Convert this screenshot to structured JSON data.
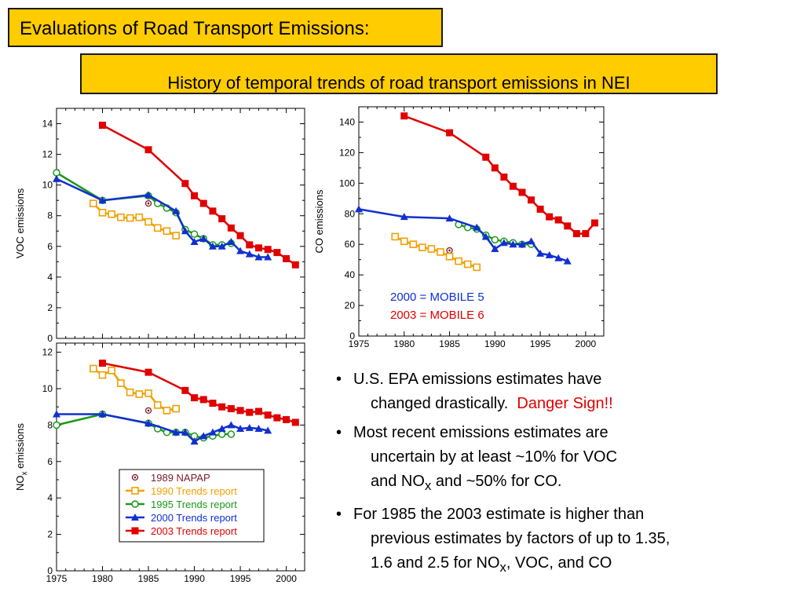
{
  "header": {
    "title": "Evaluations of Road Transport Emissions:",
    "subtitle": "History of temporal trends of road transport emissions in NEI"
  },
  "legend": {
    "entries": [
      {
        "key": "napap",
        "label": "1989 NAPAP",
        "color": "#7b1a2e",
        "marker": "dotcircle"
      },
      {
        "key": "trends1990",
        "label": "1990 Trends report",
        "color": "#f0a000",
        "marker": "square-open"
      },
      {
        "key": "trends1995",
        "label": "1995 Trends report",
        "color": "#1a9a1a",
        "marker": "circle-open"
      },
      {
        "key": "trends2000",
        "label": "2000 Trends report",
        "color": "#1030d0",
        "marker": "triangle"
      },
      {
        "key": "trends2003",
        "label": "2003 Trends report",
        "color": "#e00000",
        "marker": "square-filled"
      }
    ]
  },
  "annotations": {
    "co_line1": "2000 = MOBILE 5",
    "co_line1_color": "#1030d0",
    "co_line2": "2003 = MOBILE 6",
    "co_line2_color": "#e00000"
  },
  "bullets": {
    "b1_line1": "U.S. EPA emissions estimates have",
    "b1_line2_a": "changed drastically.",
    "b1_line2_b": "Danger Sign!!",
    "b2_line1": "Most recent emissions estimates are",
    "b2_line2": "uncertain by at least ~10% for VOC",
    "b2_line3_a": "and NO",
    "b2_line3_sub": "x",
    "b2_line3_b": " and ~50% for CO.",
    "b3_line1": "For 1985 the 2003 estimate is higher than",
    "b3_line2": "previous estimates by factors of up to 1.35,",
    "b3_line3_a": "1.6 and 2.5 for NO",
    "b3_line3_sub": "x",
    "b3_line3_b": ", VOC, and CO"
  },
  "chart_data": [
    {
      "type": "line",
      "id": "voc",
      "title": "",
      "xlabel": "",
      "ylabel": "VOC emissions",
      "xlim": [
        1975,
        2002
      ],
      "ylim": [
        0,
        15
      ],
      "xticks": [],
      "yticks": [
        0,
        2,
        4,
        6,
        8,
        10,
        12,
        14
      ],
      "series": [
        {
          "name": "1989 NAPAP",
          "key": "napap",
          "x": [
            1985
          ],
          "y": [
            8.8
          ]
        },
        {
          "name": "1990 Trends report",
          "key": "trends1990",
          "x": [
            1979,
            1980,
            1981,
            1982,
            1983,
            1984,
            1985,
            1986,
            1987,
            1988
          ],
          "y": [
            8.8,
            8.2,
            8.1,
            7.9,
            7.85,
            7.9,
            7.6,
            7.2,
            7.0,
            6.7
          ]
        },
        {
          "name": "1995 Trends report",
          "key": "trends1995",
          "x": [
            1975,
            1980,
            1985,
            1986,
            1987,
            1988,
            1989,
            1990,
            1991,
            1992,
            1993,
            1994
          ],
          "y": [
            10.8,
            9.0,
            9.3,
            8.8,
            8.5,
            8.2,
            7.1,
            6.8,
            6.5,
            6.1,
            6.1,
            6.2
          ]
        },
        {
          "name": "2000 Trends report",
          "key": "trends2000",
          "x": [
            1975,
            1980,
            1985,
            1988,
            1989,
            1990,
            1991,
            1992,
            1993,
            1994,
            1995,
            1996,
            1997,
            1998
          ],
          "y": [
            10.4,
            9.0,
            9.35,
            8.3,
            7.0,
            6.3,
            6.5,
            6.0,
            6.0,
            6.3,
            5.7,
            5.5,
            5.3,
            5.3
          ]
        },
        {
          "name": "2003 Trends report",
          "key": "trends2003",
          "x": [
            1980,
            1985,
            1989,
            1990,
            1991,
            1992,
            1993,
            1994,
            1995,
            1996,
            1997,
            1998,
            1999,
            2000,
            2001
          ],
          "y": [
            13.9,
            12.3,
            10.1,
            9.3,
            8.8,
            8.3,
            7.8,
            7.2,
            6.7,
            6.1,
            5.9,
            5.8,
            5.6,
            5.2,
            4.8
          ]
        }
      ]
    },
    {
      "type": "line",
      "id": "co",
      "title": "",
      "xlabel": "",
      "ylabel": "CO emissions",
      "xlim": [
        1975,
        2002
      ],
      "ylim": [
        0,
        150
      ],
      "xticks": [
        1975,
        1980,
        1985,
        1990,
        1995,
        2000
      ],
      "yticks": [
        0,
        20,
        40,
        60,
        80,
        100,
        120,
        140
      ],
      "series": [
        {
          "name": "1989 NAPAP",
          "key": "napap",
          "x": [
            1985
          ],
          "y": [
            56
          ]
        },
        {
          "name": "1990 Trends report",
          "key": "trends1990",
          "x": [
            1979,
            1980,
            1981,
            1982,
            1983,
            1984,
            1985,
            1986,
            1987,
            1988
          ],
          "y": [
            65,
            62,
            60,
            58,
            57,
            55,
            52,
            49,
            47,
            45
          ]
        },
        {
          "name": "1995 Trends report",
          "key": "trends1995",
          "x": [
            1986,
            1987,
            1988,
            1989,
            1990,
            1991,
            1992,
            1993,
            1994
          ],
          "y": [
            73,
            71,
            70,
            66,
            63,
            62,
            61,
            60,
            60
          ]
        },
        {
          "name": "2000 Trends report",
          "key": "trends2000",
          "x": [
            1975,
            1980,
            1985,
            1988,
            1989,
            1990,
            1991,
            1992,
            1993,
            1994,
            1995,
            1996,
            1997,
            1998
          ],
          "y": [
            83,
            78,
            77,
            71,
            65,
            57,
            61,
            60,
            60,
            62,
            54,
            53,
            51,
            49
          ]
        },
        {
          "name": "2003 Trends report",
          "key": "trends2003",
          "x": [
            1980,
            1985,
            1989,
            1990,
            1991,
            1992,
            1993,
            1994,
            1995,
            1996,
            1997,
            1998,
            1999,
            2000,
            2001
          ],
          "y": [
            144,
            133,
            117,
            110,
            104,
            98,
            94,
            89,
            83,
            78,
            76,
            72,
            67,
            67,
            74
          ]
        }
      ]
    },
    {
      "type": "line",
      "id": "nox",
      "title": "",
      "xlabel": "",
      "ylabel": "NO",
      "ylabel_sub": "x",
      "ylabel_rest": " emissions",
      "xlim": [
        1975,
        2002
      ],
      "ylim": [
        0,
        12.5
      ],
      "xticks": [
        1975,
        1980,
        1985,
        1990,
        1995,
        2000
      ],
      "yticks": [
        0,
        2,
        4,
        6,
        8,
        10,
        12
      ],
      "series": [
        {
          "name": "1989 NAPAP",
          "key": "napap",
          "x": [
            1985
          ],
          "y": [
            8.8
          ]
        },
        {
          "name": "1990 Trends report",
          "key": "trends1990",
          "x": [
            1979,
            1980,
            1981,
            1982,
            1983,
            1984,
            1985,
            1986,
            1987,
            1988
          ],
          "y": [
            11.1,
            10.75,
            11.0,
            10.3,
            9.8,
            9.7,
            9.75,
            9.1,
            8.8,
            8.9
          ]
        },
        {
          "name": "1995 Trends report",
          "key": "trends1995",
          "x": [
            1975,
            1980,
            1985,
            1986,
            1987,
            1988,
            1989,
            1990,
            1991,
            1992,
            1993,
            1994
          ],
          "y": [
            8.0,
            8.6,
            8.1,
            7.8,
            7.6,
            7.6,
            7.6,
            7.4,
            7.3,
            7.4,
            7.5,
            7.5
          ]
        },
        {
          "name": "2000 Trends report",
          "key": "trends2000",
          "x": [
            1975,
            1980,
            1985,
            1988,
            1989,
            1990,
            1991,
            1992,
            1993,
            1994,
            1995,
            1996,
            1997,
            1998
          ],
          "y": [
            8.6,
            8.6,
            8.1,
            7.6,
            7.6,
            7.1,
            7.4,
            7.6,
            7.8,
            8.0,
            7.8,
            7.85,
            7.8,
            7.7
          ]
        },
        {
          "name": "2003 Trends report",
          "key": "trends2003",
          "x": [
            1980,
            1985,
            1989,
            1990,
            1991,
            1992,
            1993,
            1994,
            1995,
            1996,
            1997,
            1998,
            1999,
            2000,
            2001
          ],
          "y": [
            11.4,
            10.9,
            9.9,
            9.5,
            9.4,
            9.2,
            9.0,
            8.9,
            8.8,
            8.7,
            8.75,
            8.55,
            8.4,
            8.3,
            8.15
          ]
        }
      ]
    }
  ]
}
